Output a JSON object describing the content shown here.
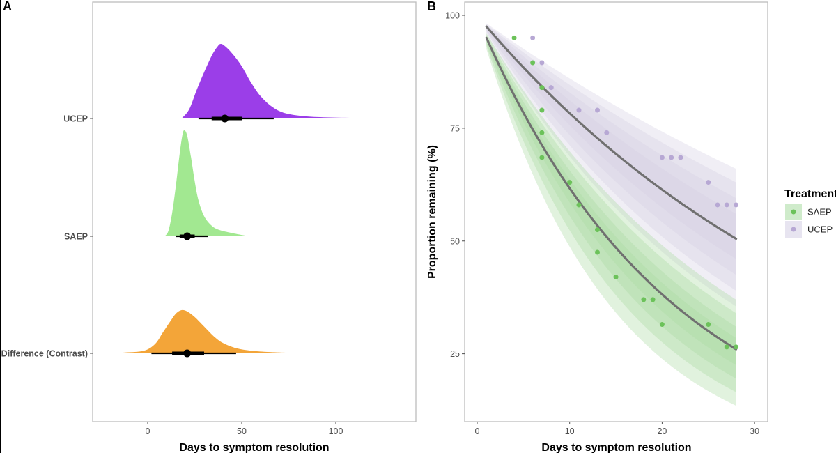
{
  "figure": {
    "panel_a_tag": "A",
    "panel_b_tag": "B"
  },
  "chart_data": [
    {
      "type": "area",
      "subtype": "half-eye posterior densities with point + interval",
      "panel": "A",
      "xlabel": "Days to symptom resolution",
      "ylabel": "",
      "xlim": [
        -28,
        140
      ],
      "xticks": [
        0,
        50,
        100
      ],
      "grid": false,
      "series": [
        {
          "name": "UCEP",
          "color": "#9b3ee8",
          "density": [
            [
              18,
              0
            ],
            [
              22,
              0.12
            ],
            [
              26,
              0.38
            ],
            [
              30,
              0.62
            ],
            [
              34,
              0.84
            ],
            [
              37,
              0.96
            ],
            [
              39,
              1.0
            ],
            [
              42,
              0.95
            ],
            [
              46,
              0.84
            ],
            [
              50,
              0.7
            ],
            [
              55,
              0.48
            ],
            [
              60,
              0.3
            ],
            [
              66,
              0.16
            ],
            [
              72,
              0.08
            ],
            [
              80,
              0.04
            ],
            [
              90,
              0.02
            ],
            [
              105,
              0.01
            ],
            [
              120,
              0.003
            ],
            [
              135,
              0
            ]
          ],
          "median": 41,
          "interval_66": [
            34,
            50
          ],
          "interval_95": [
            27,
            67
          ]
        },
        {
          "name": "SAEP",
          "color": "#a2e891",
          "density": [
            [
              9,
              0
            ],
            [
              11,
              0.05
            ],
            [
              13,
              0.22
            ],
            [
              15,
              0.48
            ],
            [
              17,
              0.78
            ],
            [
              18.5,
              0.96
            ],
            [
              19.5,
              1.0
            ],
            [
              21,
              0.95
            ],
            [
              23,
              0.75
            ],
            [
              25,
              0.52
            ],
            [
              27,
              0.34
            ],
            [
              30,
              0.19
            ],
            [
              34,
              0.1
            ],
            [
              38,
              0.06
            ],
            [
              45,
              0.03
            ],
            [
              54,
              0
            ]
          ],
          "median": 21,
          "interval_66": [
            17,
            25
          ],
          "interval_95": [
            15,
            32
          ]
        },
        {
          "name": "Difference (Contrast)",
          "color": "#f3a539",
          "density": [
            [
              -22,
              0
            ],
            [
              -12,
              0.02
            ],
            [
              -2,
              0.06
            ],
            [
              4,
              0.22
            ],
            [
              8,
              0.48
            ],
            [
              12,
              0.74
            ],
            [
              15,
              0.92
            ],
            [
              18,
              1.0
            ],
            [
              21,
              0.97
            ],
            [
              25,
              0.84
            ],
            [
              30,
              0.62
            ],
            [
              35,
              0.4
            ],
            [
              40,
              0.24
            ],
            [
              47,
              0.12
            ],
            [
              55,
              0.06
            ],
            [
              65,
              0.03
            ],
            [
              80,
              0.01
            ],
            [
              108,
              0
            ]
          ],
          "median": 21,
          "interval_66": [
            13,
            30
          ],
          "interval_95": [
            2,
            47
          ]
        }
      ]
    },
    {
      "type": "line",
      "subtype": "survival curves with credible ribbons and observed points",
      "panel": "B",
      "xlabel": "Days to symptom resolution",
      "ylabel": "Proportion remaining (%)",
      "xlim": [
        -1,
        32
      ],
      "ylim": [
        10,
        102
      ],
      "xticks": [
        0,
        10,
        20,
        30
      ],
      "yticks": [
        25,
        50,
        75,
        100
      ],
      "grid": false,
      "legend_title": "Treatment",
      "legend_position": "right",
      "series": [
        {
          "name": "SAEP",
          "color": "#6cc25a",
          "ribbon_color": "#a8dba0",
          "x": [
            1,
            28
          ],
          "curve_start": 95,
          "curve_end": 26,
          "band_start_offsets": [
            2.5,
            1.8,
            1.2,
            0.6
          ],
          "band_end_upper": [
            37,
            34,
            31,
            28.5
          ],
          "band_end_lower": [
            13.5,
            16.5,
            19.5,
            22.5
          ],
          "points": [
            [
              4,
              95
            ],
            [
              6,
              89.5
            ],
            [
              7,
              84
            ],
            [
              7,
              79
            ],
            [
              7,
              74
            ],
            [
              7,
              68.5
            ],
            [
              10,
              63
            ],
            [
              11,
              58
            ],
            [
              13,
              52.5
            ],
            [
              13,
              47.5
            ],
            [
              15,
              42
            ],
            [
              18,
              37
            ],
            [
              19,
              37
            ],
            [
              20,
              31.5
            ],
            [
              25,
              31.5
            ],
            [
              27,
              26.5
            ],
            [
              28,
              26.5
            ]
          ]
        },
        {
          "name": "UCEP",
          "color": "#b7a8d4",
          "ribbon_color": "#d3cde3",
          "x": [
            1,
            28
          ],
          "curve_start": 97.5,
          "curve_end": 50.5,
          "band_start_offsets": [
            1.8,
            1.3,
            0.9,
            0.5
          ],
          "band_end_upper": [
            66,
            63,
            59.5,
            56
          ],
          "band_end_lower": [
            35.5,
            39,
            42.5,
            46
          ],
          "points": [
            [
              6,
              95
            ],
            [
              7,
              89.5
            ],
            [
              8,
              84
            ],
            [
              11,
              79
            ],
            [
              13,
              79
            ],
            [
              14,
              74
            ],
            [
              20,
              68.5
            ],
            [
              21,
              68.5
            ],
            [
              22,
              68.5
            ],
            [
              25,
              63
            ],
            [
              26,
              58
            ],
            [
              27,
              58
            ],
            [
              28,
              58
            ]
          ]
        }
      ]
    }
  ]
}
